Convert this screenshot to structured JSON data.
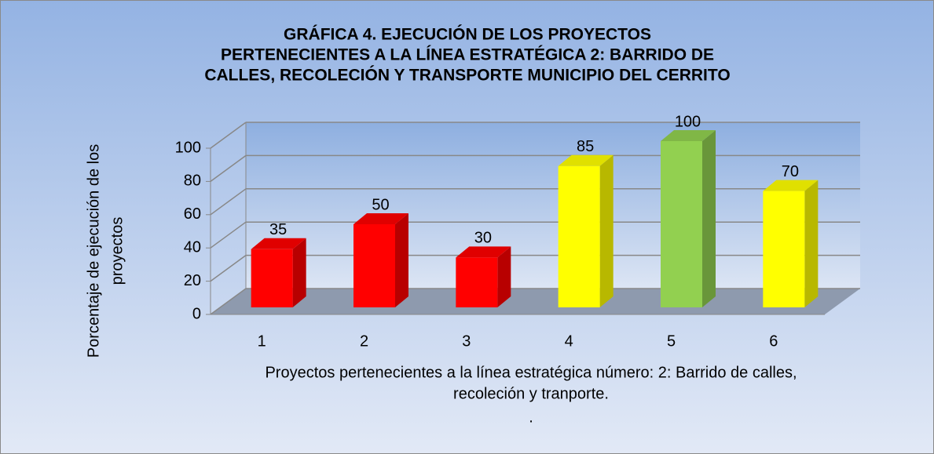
{
  "chart_data": {
    "type": "bar3d",
    "title": [
      "GRÁFICA 4. EJECUCIÓN DE LOS PROYECTOS",
      "PERTENECIENTES A LA LÍNEA ESTRATÉGICA 2: BARRIDO DE",
      "CALLES, RECOLECIÓN Y TRANSPORTE MUNICIPIO DEL CERRITO"
    ],
    "y_label": [
      "Porcentaje de ejecución de los",
      "proyectos"
    ],
    "x_label": [
      "Proyectos  pertenecientes a la línea estratégica número: 2:  Barrido de calles,",
      "recoleción y tranporte.",
      "."
    ],
    "categories": [
      "1",
      "2",
      "3",
      "4",
      "5",
      "6"
    ],
    "values": [
      35,
      50,
      30,
      85,
      100,
      70
    ],
    "colors": [
      "#ff0000",
      "#ff0000",
      "#ff0000",
      "#ffff00",
      "#92d050",
      "#ffff00"
    ],
    "ylim": [
      0,
      100
    ],
    "yticks": [
      0,
      20,
      40,
      60,
      80,
      100
    ],
    "grid": true
  }
}
